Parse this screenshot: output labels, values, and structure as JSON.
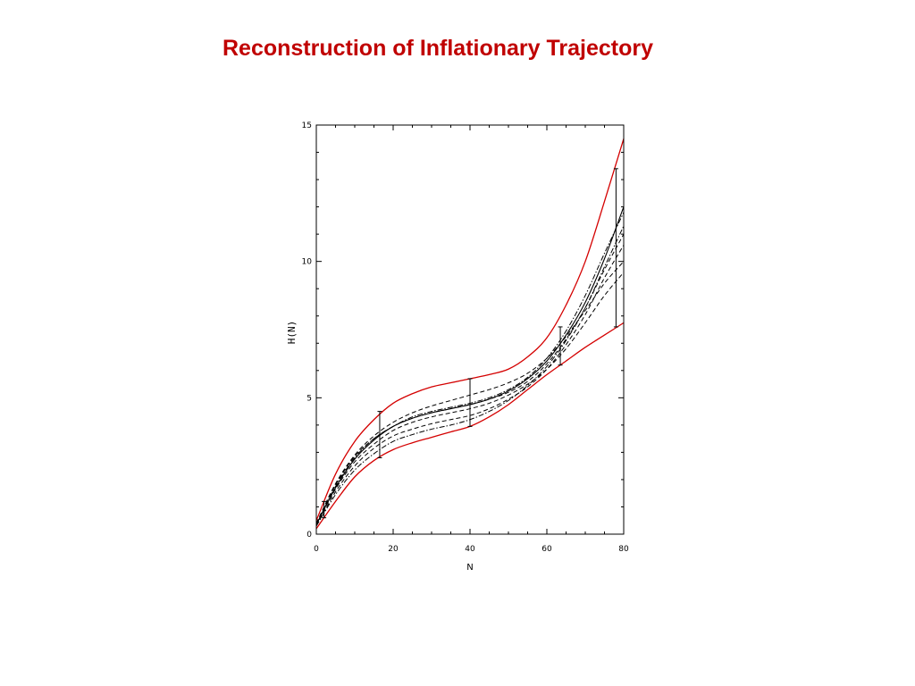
{
  "slide": {
    "title": "Reconstruction of Inflationary Trajectory"
  },
  "colors": {
    "title": "#c00000",
    "envelope": "#d40000",
    "curve": "#000000"
  },
  "chart_data": {
    "type": "line",
    "xlabel": "N",
    "ylabel": "H(N)",
    "xlim": [
      0,
      80
    ],
    "ylim": [
      0,
      15
    ],
    "x_ticks": [
      "0",
      "20",
      "40",
      "60",
      "80"
    ],
    "y_ticks": [
      "0",
      "5",
      "10",
      "15"
    ],
    "grid": false,
    "legend": "none",
    "series": [
      {
        "style": "red-solid",
        "x": [
          0,
          5,
          10,
          15,
          20,
          25,
          30,
          35,
          40,
          45,
          50,
          55,
          60,
          65,
          70,
          75,
          80
        ],
        "y": [
          0.5,
          2.2,
          3.4,
          4.2,
          4.8,
          5.15,
          5.4,
          5.55,
          5.7,
          5.85,
          6.05,
          6.5,
          7.2,
          8.4,
          10.0,
          12.2,
          14.5
        ]
      },
      {
        "style": "red-solid",
        "x": [
          0,
          5,
          10,
          15,
          20,
          25,
          30,
          35,
          40,
          45,
          50,
          55,
          60,
          65,
          70,
          75,
          80
        ],
        "y": [
          0.2,
          1.2,
          2.1,
          2.7,
          3.1,
          3.35,
          3.55,
          3.75,
          3.95,
          4.3,
          4.75,
          5.3,
          5.85,
          6.35,
          6.85,
          7.3,
          7.75
        ]
      },
      {
        "style": "black-solid",
        "x": [
          0,
          5,
          10,
          15,
          20,
          25,
          30,
          35,
          40,
          45,
          50,
          55,
          60,
          65,
          70,
          75,
          80
        ],
        "y": [
          0.35,
          1.7,
          2.75,
          3.45,
          3.95,
          4.25,
          4.45,
          4.6,
          4.75,
          4.95,
          5.25,
          5.7,
          6.35,
          7.3,
          8.5,
          10.1,
          12.0
        ]
      },
      {
        "style": "black-dashed",
        "x": [
          0,
          5,
          10,
          15,
          20,
          25,
          30,
          35,
          40,
          45,
          50,
          55,
          60,
          65,
          70,
          75,
          80
        ],
        "y": [
          0.4,
          1.85,
          2.9,
          3.6,
          4.1,
          4.45,
          4.7,
          4.9,
          5.1,
          5.3,
          5.55,
          5.9,
          6.45,
          7.25,
          8.2,
          9.2,
          10.0
        ]
      },
      {
        "style": "black-dashed",
        "x": [
          0,
          5,
          10,
          15,
          20,
          25,
          30,
          35,
          40,
          45,
          50,
          55,
          60,
          65,
          70,
          75,
          80
        ],
        "y": [
          0.35,
          1.65,
          2.65,
          3.3,
          3.8,
          4.1,
          4.3,
          4.45,
          4.6,
          4.8,
          5.1,
          5.5,
          6.05,
          6.8,
          7.75,
          8.75,
          9.6
        ]
      },
      {
        "style": "black-dashed",
        "x": [
          0,
          5,
          10,
          15,
          20,
          25,
          30,
          35,
          40,
          45,
          50,
          55,
          60,
          65,
          70,
          75,
          80
        ],
        "y": [
          0.3,
          1.55,
          2.5,
          3.15,
          3.6,
          3.85,
          4.05,
          4.2,
          4.35,
          4.6,
          4.95,
          5.4,
          6.05,
          6.95,
          8.05,
          9.4,
          10.6
        ]
      },
      {
        "style": "black-dashed",
        "x": [
          0,
          5,
          10,
          15,
          20,
          25,
          30,
          35,
          40,
          45,
          50,
          55,
          60,
          65,
          70,
          75,
          80
        ],
        "y": [
          0.4,
          1.8,
          2.85,
          3.5,
          3.95,
          4.25,
          4.45,
          4.6,
          4.75,
          4.95,
          5.2,
          5.6,
          6.25,
          7.15,
          8.3,
          9.7,
          11.0
        ]
      },
      {
        "style": "black-dashdot",
        "x": [
          0,
          5,
          10,
          15,
          20,
          25,
          30,
          35,
          40,
          45,
          50,
          55,
          60,
          65,
          70,
          75,
          80
        ],
        "y": [
          0.3,
          1.45,
          2.35,
          2.95,
          3.4,
          3.65,
          3.85,
          4.0,
          4.2,
          4.5,
          4.9,
          5.45,
          6.15,
          7.1,
          8.3,
          9.8,
          11.3
        ]
      },
      {
        "style": "black-dashdot",
        "x": [
          0,
          5,
          10,
          15,
          20,
          25,
          30,
          35,
          40,
          45,
          50,
          55,
          60,
          65,
          70,
          75,
          80
        ],
        "y": [
          0.35,
          1.75,
          2.8,
          3.5,
          3.95,
          4.3,
          4.5,
          4.65,
          4.8,
          5.0,
          5.3,
          5.75,
          6.45,
          7.45,
          8.75,
          10.3,
          11.8
        ]
      }
    ],
    "error_bars": [
      {
        "x": 2,
        "low": 0.6,
        "high": 1.2
      },
      {
        "x": 16.5,
        "low": 2.8,
        "high": 4.5
      },
      {
        "x": 40,
        "low": 3.95,
        "high": 5.7
      },
      {
        "x": 63.5,
        "low": 6.2,
        "high": 7.6
      },
      {
        "x": 78,
        "low": 7.6,
        "high": 13.4
      }
    ]
  }
}
